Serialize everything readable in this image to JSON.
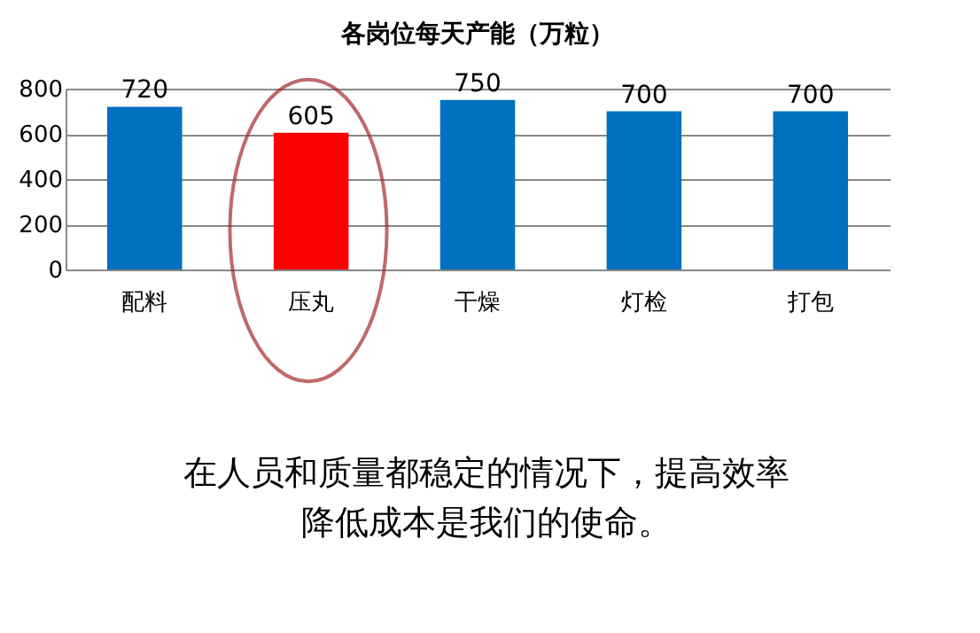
{
  "chart_data": {
    "type": "bar",
    "title": "各岗位每天产能（万粒）",
    "categories": [
      "配料",
      "压丸",
      "干燥",
      "灯检",
      "打包"
    ],
    "values": [
      720,
      605,
      750,
      700,
      700
    ],
    "colors": [
      "#0070c0",
      "#ff0000",
      "#0070c0",
      "#0070c0",
      "#0070c0"
    ],
    "ylim": [
      0,
      800
    ],
    "yticks": [
      0,
      200,
      400,
      600,
      800
    ],
    "grid": "y",
    "data_labels": true,
    "annotations": [
      "在人员和质量都稳定的情况下，提高效率",
      "降低成本是我们的使命。"
    ]
  }
}
